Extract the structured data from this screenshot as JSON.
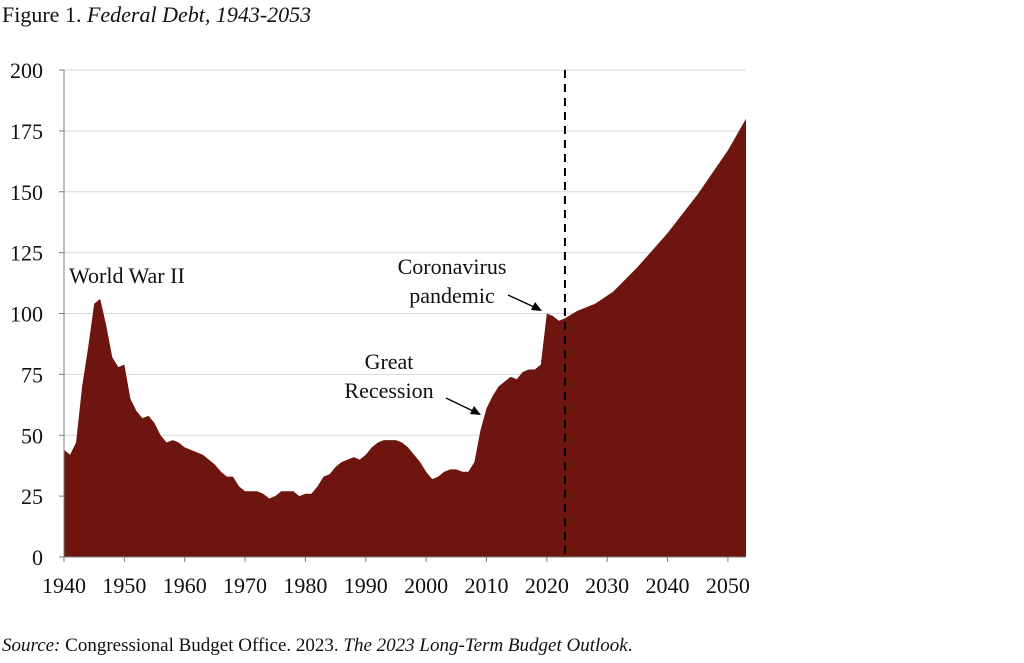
{
  "figure": {
    "label": "Figure 1.",
    "title": "Federal Debt, 1943-2053"
  },
  "source": {
    "label": "Source:",
    "text_a": "Congressional Budget Office. 2023.",
    "text_b": "The 2023 Long-Term Budget Outlook",
    "text_c": "."
  },
  "colors": {
    "area_fill": "#6e1510",
    "grid": "#d9d9d9",
    "axis": "#7f7f7f",
    "divider": "#000000"
  },
  "chart_data": {
    "type": "area",
    "title": "Federal Debt, 1943-2053",
    "xlabel": "",
    "ylabel": "",
    "xlim": [
      1940,
      2053
    ],
    "ylim": [
      0,
      200
    ],
    "x_ticks": [
      1940,
      1950,
      1960,
      1970,
      1980,
      1990,
      2000,
      2010,
      2020,
      2030,
      2040,
      2050
    ],
    "y_ticks": [
      0,
      25,
      50,
      75,
      100,
      125,
      150,
      175,
      200
    ],
    "grid": true,
    "legend": "none",
    "projection_divider_year": 2023,
    "x": [
      1940,
      1941,
      1942,
      1943,
      1944,
      1945,
      1946,
      1947,
      1948,
      1949,
      1950,
      1951,
      1952,
      1953,
      1954,
      1955,
      1956,
      1957,
      1958,
      1959,
      1960,
      1961,
      1962,
      1963,
      1964,
      1965,
      1966,
      1967,
      1968,
      1969,
      1970,
      1971,
      1972,
      1973,
      1974,
      1975,
      1976,
      1977,
      1978,
      1979,
      1980,
      1981,
      1982,
      1983,
      1984,
      1985,
      1986,
      1987,
      1988,
      1989,
      1990,
      1991,
      1992,
      1993,
      1994,
      1995,
      1996,
      1997,
      1998,
      1999,
      2000,
      2001,
      2002,
      2003,
      2004,
      2005,
      2006,
      2007,
      2008,
      2009,
      2010,
      2011,
      2012,
      2013,
      2014,
      2015,
      2016,
      2017,
      2018,
      2019,
      2020,
      2021,
      2022,
      2023,
      2025,
      2028,
      2031,
      2035,
      2040,
      2045,
      2050,
      2053
    ],
    "values": [
      44,
      42,
      47,
      70,
      86,
      104,
      106,
      95,
      82,
      78,
      79,
      65,
      60,
      57,
      58,
      55,
      50,
      47,
      48,
      47,
      45,
      44,
      43,
      42,
      40,
      38,
      35,
      33,
      33,
      29,
      27,
      27,
      27,
      26,
      24,
      25,
      27,
      27,
      27,
      25,
      26,
      26,
      29,
      33,
      34,
      37,
      39,
      40,
      41,
      40,
      42,
      45,
      47,
      48,
      48,
      48,
      47,
      45,
      42,
      39,
      35,
      32,
      33,
      35,
      36,
      36,
      35,
      35,
      39,
      52,
      61,
      66,
      70,
      72,
      74,
      73,
      76,
      77,
      77,
      79,
      100,
      99,
      97,
      98,
      101,
      104,
      109,
      119,
      133,
      149,
      167,
      180
    ],
    "annotations": [
      {
        "text_lines": [
          "World War II"
        ],
        "year": 1945
      },
      {
        "text_lines": [
          "Great",
          "Recession"
        ],
        "year": 2009
      },
      {
        "text_lines": [
          "Coronavirus",
          "pandemic"
        ],
        "year": 2020
      }
    ]
  }
}
